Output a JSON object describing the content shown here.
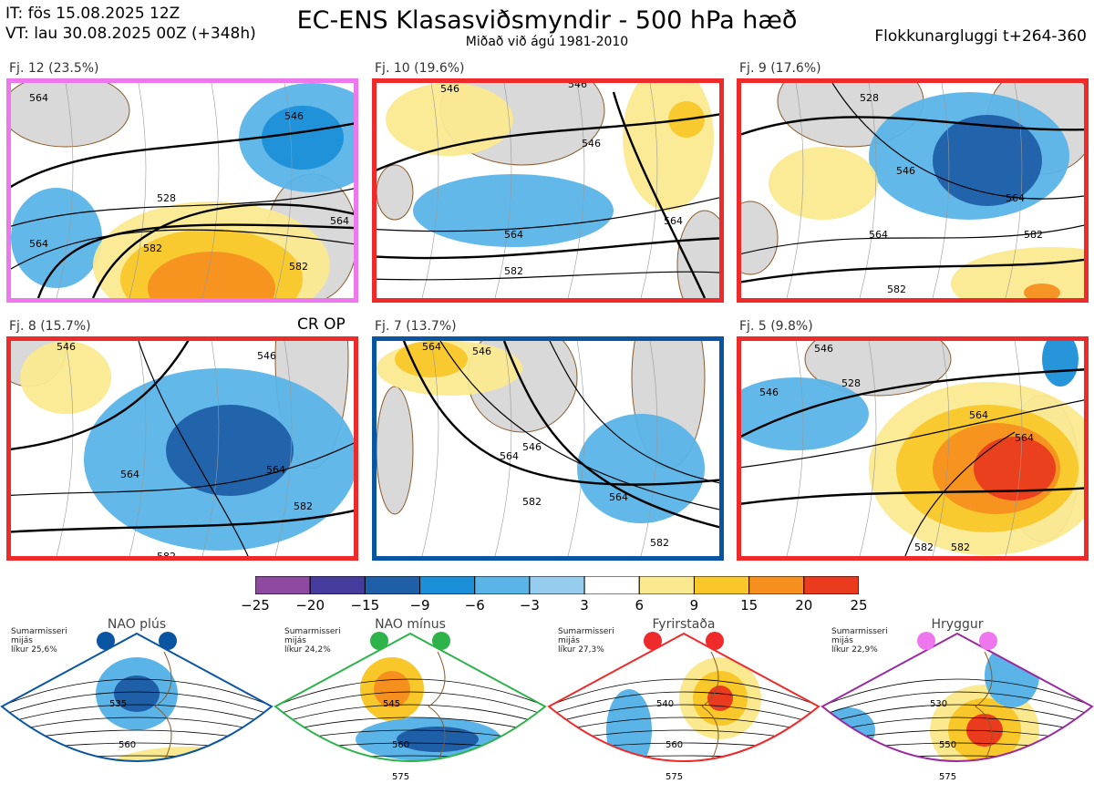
{
  "header": {
    "it": "IT: fös 15.08.2025 12Z",
    "vt": "VT: lau 30.08.2025 00Z  (+348h)",
    "title": "EC-ENS Klasasviðsmyndir - 500 hPa hæð",
    "subtitle": "Miðað við ágú 1981-2010",
    "window": "Flokkunargluggi t+264-360",
    "crop_label": "CR OP"
  },
  "colors": {
    "pink": "#ee77ee",
    "red": "#ee2a2a",
    "blue": "#0a55a2",
    "green": "#2db34a",
    "purple": "#9a2aa0",
    "land": "#d9d9d9",
    "coast": "#8b5a2b"
  },
  "clusters": [
    {
      "label": "Fj. 12 (23.5%)",
      "border": "pink",
      "contours": [
        "564",
        "546",
        "528",
        "564",
        "582",
        "582",
        "564"
      ]
    },
    {
      "label": "Fj. 10 (19.6%)",
      "border": "red",
      "contours": [
        "546",
        "546",
        "546",
        "564",
        "564",
        "582"
      ]
    },
    {
      "label": "Fj. 9 (17.6%)",
      "border": "red",
      "contours": [
        "528",
        "546",
        "564",
        "564",
        "582",
        "582"
      ]
    },
    {
      "label": "Fj. 8 (15.7%)",
      "border": "red",
      "contours": [
        "546",
        "546",
        "564",
        "564",
        "582",
        "582"
      ]
    },
    {
      "label": "Fj. 7 (13.7%)",
      "border": "blue",
      "contours": [
        "564",
        "546",
        "546",
        "564",
        "564",
        "582",
        "582"
      ]
    },
    {
      "label": "Fj. 5 (9.8%)",
      "border": "red",
      "contours": [
        "546",
        "546",
        "528",
        "564",
        "564",
        "582",
        "582"
      ]
    }
  ],
  "chart_data": {
    "type": "heatmap",
    "colorbar": {
      "ticks": [
        "−25",
        "−20",
        "−15",
        "−9",
        "−6",
        "−3",
        "3",
        "6",
        "9",
        "15",
        "20",
        "25"
      ],
      "colors": [
        "#8e4aa0",
        "#463c9e",
        "#1f5fa8",
        "#1b8fd8",
        "#5ab4e8",
        "#96cdee",
        "#ffffff",
        "#fbe990",
        "#f8c82a",
        "#f5901f",
        "#ea3b1e",
        "#b80d15"
      ]
    }
  },
  "regimes": [
    {
      "title": "NAO plús",
      "note": [
        "Sumarmisseri",
        "mijás",
        "líkur 25,6%"
      ],
      "color": "blue",
      "contours": [
        "535",
        "560"
      ]
    },
    {
      "title": "NAO mínus",
      "note": [
        "Sumarmisseri",
        "mijás",
        "líkur 24,2%"
      ],
      "color": "green",
      "contours": [
        "545",
        "560",
        "575"
      ]
    },
    {
      "title": "Fyrirstaða",
      "note": [
        "Sumarmisseri",
        "mijás",
        "líkur 27,3%"
      ],
      "color": "red",
      "contours": [
        "540",
        "560",
        "575"
      ]
    },
    {
      "title": "Hryggur",
      "note": [
        "Sumarmisseri",
        "mijás",
        "líkur 22,9%"
      ],
      "color": "purple",
      "contours": [
        "530",
        "550",
        "575"
      ]
    }
  ]
}
